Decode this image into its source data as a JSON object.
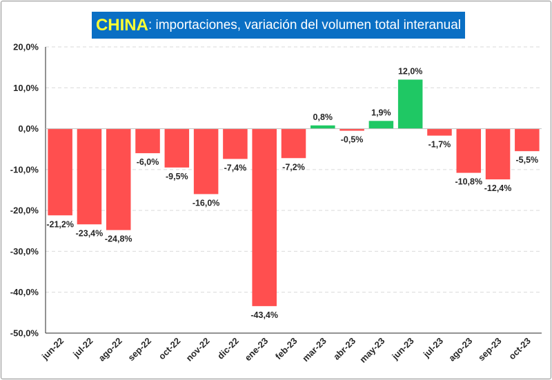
{
  "title": {
    "main": "CHINA",
    "rest": ": importaciones, variación del volumen total interanual"
  },
  "colors": {
    "negative": "#ff4f4f",
    "positive": "#1fc864",
    "grid": "#d9d9d9",
    "axis": "#262626"
  },
  "chart_data": {
    "type": "bar",
    "title": "CHINA: importaciones, variación del volumen total interanual",
    "categories": [
      "jun-22",
      "jul-22",
      "ago-22",
      "sep-22",
      "oct-22",
      "nov-22",
      "dic-22",
      "ene-23",
      "feb-23",
      "mar-23",
      "abr-23",
      "may-23",
      "jun-23",
      "jul-23",
      "ago-23",
      "sep-23",
      "oct-23"
    ],
    "values": [
      -21.2,
      -23.4,
      -24.8,
      -6.0,
      -9.5,
      -16.0,
      -7.4,
      -43.4,
      -7.2,
      0.8,
      -0.5,
      1.9,
      12.0,
      -1.7,
      -10.8,
      -12.4,
      -5.5
    ],
    "data_labels": [
      "-21,2%",
      "-23,4%",
      "-24,8%",
      "-6,0%",
      "-9,5%",
      "-16,0%",
      "-7,4%",
      "-43,4%",
      "-7,2%",
      "0,8%",
      "-0,5%",
      "1,9%",
      "12,0%",
      "-1,7%",
      "-10,8%",
      "-12,4%",
      "-5,5%"
    ],
    "y_ticks": [
      20,
      10,
      0,
      -10,
      -20,
      -30,
      -40,
      -50
    ],
    "y_tick_labels": [
      "20,0%",
      "10,0%",
      "0,0%",
      "-10,0%",
      "-20,0%",
      "-30,0%",
      "-40,0%",
      "-50,0%"
    ],
    "ylim": [
      -50,
      20
    ],
    "xlabel": "",
    "ylabel": "",
    "grid": true,
    "legend": "none"
  }
}
